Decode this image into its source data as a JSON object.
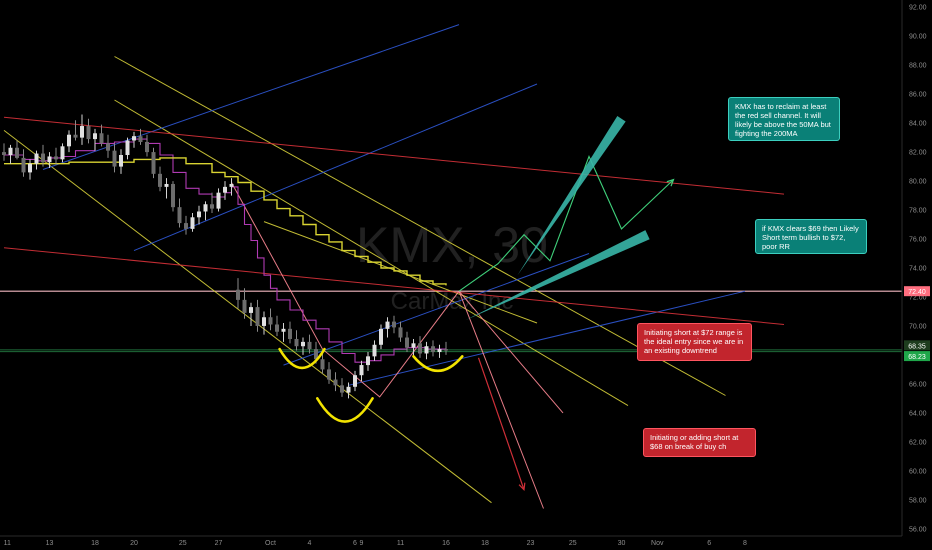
{
  "chart_data": {
    "type": "line",
    "symbol": "KMX, 30",
    "company": "CarMax Inc",
    "ylim": [
      55.5,
      92.5
    ],
    "y_ticks": [
      56,
      58,
      60,
      62,
      64,
      66,
      68,
      70,
      72,
      74,
      76,
      78,
      80,
      82,
      84,
      86,
      88,
      90,
      92
    ],
    "x_ticks": [
      {
        "label": "11",
        "bar": 0.5
      },
      {
        "label": "13",
        "bar": 7
      },
      {
        "label": "18",
        "bar": 14
      },
      {
        "label": "20",
        "bar": 20
      },
      {
        "label": "25",
        "bar": 27.5
      },
      {
        "label": "27",
        "bar": 33
      },
      {
        "label": "Oct",
        "bar": 41
      },
      {
        "label": "4",
        "bar": 47
      },
      {
        "label": "6",
        "bar": 54
      },
      {
        "label": "9",
        "bar": 55
      },
      {
        "label": "11",
        "bar": 61
      },
      {
        "label": "16",
        "bar": 68
      },
      {
        "label": "18",
        "bar": 74
      },
      {
        "label": "23",
        "bar": 81
      },
      {
        "label": "25",
        "bar": 87.5
      },
      {
        "label": "30",
        "bar": 95
      },
      {
        "label": "Nov",
        "bar": 100.5
      },
      {
        "label": "6",
        "bar": 108.5
      },
      {
        "label": "8",
        "bar": 114
      }
    ],
    "x_domain_bars": [
      0,
      120
    ],
    "price_bars": [
      {
        "x": 0,
        "o": 82,
        "h": 82.6,
        "l": 81.4,
        "c": 81.8
      },
      {
        "x": 1,
        "o": 81.8,
        "h": 82.5,
        "l": 81.2,
        "c": 82.3
      },
      {
        "x": 2,
        "o": 82.3,
        "h": 82.8,
        "l": 81.5,
        "c": 81.6
      },
      {
        "x": 3,
        "o": 81.6,
        "h": 82.2,
        "l": 80.3,
        "c": 80.6
      },
      {
        "x": 4,
        "o": 80.6,
        "h": 81.5,
        "l": 80.1,
        "c": 81.2
      },
      {
        "x": 5,
        "o": 81.2,
        "h": 82.1,
        "l": 80.8,
        "c": 81.9
      },
      {
        "x": 6,
        "o": 81.9,
        "h": 82.5,
        "l": 81.0,
        "c": 81.3
      },
      {
        "x": 7,
        "o": 81.3,
        "h": 82.0,
        "l": 80.9,
        "c": 81.7
      },
      {
        "x": 8,
        "o": 81.7,
        "h": 82.3,
        "l": 81.2,
        "c": 81.5
      },
      {
        "x": 9,
        "o": 81.5,
        "h": 82.6,
        "l": 81.3,
        "c": 82.4
      },
      {
        "x": 10,
        "o": 82.4,
        "h": 83.5,
        "l": 82.0,
        "c": 83.2
      },
      {
        "x": 11,
        "o": 83.2,
        "h": 84.2,
        "l": 82.8,
        "c": 83.0
      },
      {
        "x": 12,
        "o": 83.0,
        "h": 84.6,
        "l": 82.5,
        "c": 83.8
      },
      {
        "x": 13,
        "o": 83.8,
        "h": 84.3,
        "l": 82.6,
        "c": 82.9
      },
      {
        "x": 14,
        "o": 82.9,
        "h": 83.6,
        "l": 82.1,
        "c": 83.3
      },
      {
        "x": 15,
        "o": 83.3,
        "h": 83.9,
        "l": 82.4,
        "c": 82.6
      },
      {
        "x": 16,
        "o": 82.6,
        "h": 83.2,
        "l": 81.6,
        "c": 82.1
      },
      {
        "x": 17,
        "o": 82.1,
        "h": 82.6,
        "l": 80.6,
        "c": 81.0
      },
      {
        "x": 18,
        "o": 81.0,
        "h": 82.2,
        "l": 80.5,
        "c": 81.8
      },
      {
        "x": 19,
        "o": 81.8,
        "h": 83.0,
        "l": 81.5,
        "c": 82.8
      },
      {
        "x": 20,
        "o": 82.8,
        "h": 83.4,
        "l": 82.3,
        "c": 83.1
      },
      {
        "x": 21,
        "o": 83.1,
        "h": 83.6,
        "l": 82.5,
        "c": 82.7
      },
      {
        "x": 22,
        "o": 82.7,
        "h": 83.2,
        "l": 81.7,
        "c": 82.0
      },
      {
        "x": 23,
        "o": 82.0,
        "h": 82.3,
        "l": 80.2,
        "c": 80.5
      },
      {
        "x": 24,
        "o": 80.5,
        "h": 81.0,
        "l": 79.3,
        "c": 79.6
      },
      {
        "x": 25,
        "o": 79.6,
        "h": 80.2,
        "l": 78.8,
        "c": 79.8
      },
      {
        "x": 26,
        "o": 79.8,
        "h": 80.0,
        "l": 77.9,
        "c": 78.2
      },
      {
        "x": 27,
        "o": 78.2,
        "h": 78.8,
        "l": 76.8,
        "c": 77.1
      },
      {
        "x": 28,
        "o": 77.1,
        "h": 77.6,
        "l": 76.3,
        "c": 76.7
      },
      {
        "x": 29,
        "o": 76.7,
        "h": 77.8,
        "l": 76.5,
        "c": 77.5
      },
      {
        "x": 30,
        "o": 77.5,
        "h": 78.3,
        "l": 77.0,
        "c": 77.9
      },
      {
        "x": 31,
        "o": 77.9,
        "h": 78.6,
        "l": 77.3,
        "c": 78.4
      },
      {
        "x": 32,
        "o": 78.4,
        "h": 79.2,
        "l": 77.8,
        "c": 78.1
      },
      {
        "x": 33,
        "o": 78.1,
        "h": 79.5,
        "l": 77.9,
        "c": 79.2
      },
      {
        "x": 34,
        "o": 79.2,
        "h": 80.0,
        "l": 78.7,
        "c": 79.6
      },
      {
        "x": 35,
        "o": 79.6,
        "h": 80.2,
        "l": 79.0,
        "c": 79.8
      },
      {
        "x": 36,
        "o": 72.5,
        "h": 73.3,
        "l": 71.2,
        "c": 71.8
      },
      {
        "x": 37,
        "o": 71.8,
        "h": 72.6,
        "l": 70.5,
        "c": 70.9
      },
      {
        "x": 38,
        "o": 70.9,
        "h": 71.6,
        "l": 70.0,
        "c": 71.3
      },
      {
        "x": 39,
        "o": 71.3,
        "h": 71.8,
        "l": 69.6,
        "c": 70.0
      },
      {
        "x": 40,
        "o": 70.0,
        "h": 71.0,
        "l": 69.4,
        "c": 70.6
      },
      {
        "x": 41,
        "o": 70.6,
        "h": 71.2,
        "l": 69.7,
        "c": 70.1
      },
      {
        "x": 42,
        "o": 70.1,
        "h": 70.7,
        "l": 69.3,
        "c": 69.6
      },
      {
        "x": 43,
        "o": 69.6,
        "h": 70.2,
        "l": 68.9,
        "c": 69.8
      },
      {
        "x": 44,
        "o": 69.8,
        "h": 70.3,
        "l": 68.8,
        "c": 69.1
      },
      {
        "x": 45,
        "o": 69.1,
        "h": 69.7,
        "l": 68.3,
        "c": 68.6
      },
      {
        "x": 46,
        "o": 68.6,
        "h": 69.2,
        "l": 68.0,
        "c": 68.9
      },
      {
        "x": 47,
        "o": 68.9,
        "h": 69.4,
        "l": 68.1,
        "c": 68.4
      },
      {
        "x": 48,
        "o": 68.4,
        "h": 68.9,
        "l": 67.4,
        "c": 67.7
      },
      {
        "x": 49,
        "o": 67.7,
        "h": 68.2,
        "l": 66.7,
        "c": 67.0
      },
      {
        "x": 50,
        "o": 67.0,
        "h": 67.5,
        "l": 66.0,
        "c": 66.3
      },
      {
        "x": 51,
        "o": 66.3,
        "h": 66.8,
        "l": 65.5,
        "c": 65.9
      },
      {
        "x": 52,
        "o": 65.9,
        "h": 66.4,
        "l": 65.1,
        "c": 65.4
      },
      {
        "x": 53,
        "o": 65.4,
        "h": 66.1,
        "l": 65.0,
        "c": 65.8
      },
      {
        "x": 54,
        "o": 65.8,
        "h": 66.9,
        "l": 65.5,
        "c": 66.6
      },
      {
        "x": 55,
        "o": 66.6,
        "h": 67.6,
        "l": 66.2,
        "c": 67.3
      },
      {
        "x": 56,
        "o": 67.3,
        "h": 68.2,
        "l": 66.9,
        "c": 67.9
      },
      {
        "x": 57,
        "o": 67.9,
        "h": 69.0,
        "l": 67.6,
        "c": 68.7
      },
      {
        "x": 58,
        "o": 68.7,
        "h": 70.1,
        "l": 68.4,
        "c": 69.8
      },
      {
        "x": 59,
        "o": 69.8,
        "h": 70.6,
        "l": 69.2,
        "c": 70.3
      },
      {
        "x": 60,
        "o": 70.3,
        "h": 70.7,
        "l": 69.5,
        "c": 69.9
      },
      {
        "x": 61,
        "o": 69.9,
        "h": 70.3,
        "l": 68.9,
        "c": 69.2
      },
      {
        "x": 62,
        "o": 69.2,
        "h": 69.6,
        "l": 68.2,
        "c": 68.5
      },
      {
        "x": 63,
        "o": 68.5,
        "h": 69.1,
        "l": 67.9,
        "c": 68.8
      },
      {
        "x": 64,
        "o": 68.8,
        "h": 69.3,
        "l": 67.8,
        "c": 68.1
      },
      {
        "x": 65,
        "o": 68.1,
        "h": 68.9,
        "l": 67.7,
        "c": 68.6
      },
      {
        "x": 66,
        "o": 68.6,
        "h": 69.0,
        "l": 67.9,
        "c": 68.2
      },
      {
        "x": 67,
        "o": 68.2,
        "h": 68.7,
        "l": 67.8,
        "c": 68.4
      },
      {
        "x": 68,
        "o": 68.4,
        "h": 68.9,
        "l": 68.0,
        "c": 68.3
      }
    ],
    "ma_fast": [
      [
        0,
        81.8
      ],
      [
        3,
        81.5
      ],
      [
        5,
        81.4
      ],
      [
        7,
        81.6
      ],
      [
        9,
        81.7
      ],
      [
        11,
        82.1
      ],
      [
        14,
        82.6
      ],
      [
        17,
        82.7
      ],
      [
        20,
        82.9
      ],
      [
        22,
        82.6
      ],
      [
        24,
        81.8
      ],
      [
        26,
        80.6
      ],
      [
        28,
        79.5
      ],
      [
        30,
        79.1
      ],
      [
        32,
        78.9
      ],
      [
        34,
        79.2
      ],
      [
        35,
        79.6
      ],
      [
        36,
        78.4
      ],
      [
        37,
        77.0
      ],
      [
        38,
        75.9
      ],
      [
        39,
        74.7
      ],
      [
        40,
        73.5
      ],
      [
        41,
        72.6
      ],
      [
        42,
        71.8
      ],
      [
        44,
        71.1
      ],
      [
        46,
        70.4
      ],
      [
        48,
        69.8
      ],
      [
        50,
        68.9
      ],
      [
        52,
        68.1
      ],
      [
        54,
        67.5
      ],
      [
        56,
        67.6
      ],
      [
        58,
        68.0
      ],
      [
        60,
        68.4
      ],
      [
        62,
        68.5
      ],
      [
        65,
        68.4
      ],
      [
        68,
        68.3
      ]
    ],
    "ma_slow": [
      [
        0,
        81.2
      ],
      [
        10,
        81.3
      ],
      [
        20,
        81.5
      ],
      [
        24,
        81.6
      ],
      [
        28,
        81.2
      ],
      [
        32,
        80.6
      ],
      [
        34,
        80.3
      ],
      [
        36,
        79.9
      ],
      [
        38,
        79.3
      ],
      [
        40,
        78.7
      ],
      [
        42,
        78.1
      ],
      [
        44,
        77.6
      ],
      [
        46,
        77.0
      ],
      [
        48,
        76.3
      ],
      [
        50,
        75.8
      ],
      [
        52,
        75.2
      ],
      [
        54,
        74.8
      ],
      [
        56,
        74.4
      ],
      [
        58,
        74.0
      ],
      [
        60,
        73.8
      ],
      [
        62,
        73.5
      ],
      [
        64,
        73.1
      ],
      [
        66,
        72.9
      ],
      [
        68,
        72.8
      ]
    ],
    "price_levels": [
      {
        "value": 72.4,
        "label": "72.40",
        "color": "#f2b8c0",
        "label_bg": "#ff6e7f"
      },
      {
        "value": 68.35,
        "label": "68.35",
        "color": "#1f6b3a",
        "label_bg": "#1e3d1e"
      },
      {
        "value": 68.23,
        "label": "68.23",
        "color": "#1f6b3a",
        "label_bg": "#1fa64a"
      }
    ],
    "trendlines": [
      {
        "color": "#d6cf3a",
        "points": [
          [
            0,
            83.5
          ],
          [
            75,
            57.8
          ]
        ]
      },
      {
        "color": "#d6cf3a",
        "points": [
          [
            17,
            88.6
          ],
          [
            111,
            65.2
          ]
        ]
      },
      {
        "color": "#d6cf3a",
        "points": [
          [
            17,
            85.6
          ],
          [
            96,
            64.5
          ]
        ]
      },
      {
        "color": "#d6cf3a",
        "points": [
          [
            40,
            77.2
          ],
          [
            82,
            70.2
          ]
        ]
      },
      {
        "color": "#2f58d6",
        "points": [
          [
            6,
            80.8
          ],
          [
            70,
            90.8
          ]
        ]
      },
      {
        "color": "#2f58d6",
        "points": [
          [
            20,
            75.2
          ],
          [
            82,
            86.7
          ]
        ]
      },
      {
        "color": "#2f58d6",
        "points": [
          [
            43,
            67.3
          ],
          [
            90,
            75.0
          ]
        ]
      },
      {
        "color": "#2f58d6",
        "points": [
          [
            53,
            65.9
          ],
          [
            114,
            72.4
          ]
        ]
      },
      {
        "color": "#d8323a",
        "points": [
          [
            0,
            84.4
          ],
          [
            120,
            79.1
          ]
        ]
      },
      {
        "color": "#d8323a",
        "points": [
          [
            0,
            75.4
          ],
          [
            120,
            70.1
          ]
        ]
      },
      {
        "color": "#ff8a96",
        "points": [
          [
            35,
            79.9
          ],
          [
            49,
            68.4
          ],
          [
            57.8,
            65.1
          ],
          [
            70,
            72.4
          ],
          [
            83,
            57.4
          ]
        ]
      },
      {
        "color": "#ff8a96",
        "points": [
          [
            70,
            72.4
          ],
          [
            86,
            64.0
          ]
        ]
      }
    ],
    "projection_green": [
      [
        70,
        72.4
      ],
      [
        76,
        74.3
      ],
      [
        80,
        76.3
      ],
      [
        84,
        74.5
      ],
      [
        90,
        81.7
      ],
      [
        95,
        76.7
      ],
      [
        103,
        80.1
      ]
    ],
    "arrows": [
      {
        "color": "#cf2f38",
        "points": [
          [
            73,
            67.8
          ],
          [
            80,
            58.7
          ]
        ]
      },
      {
        "color": "#38b6a8",
        "points": [
          [
            79,
            73.5
          ],
          [
            95,
            84.3
          ]
        ]
      },
      {
        "color": "#38b6a8",
        "points": [
          [
            71,
            70.4
          ],
          [
            99,
            76.3
          ]
        ]
      }
    ],
    "highlight_arcs": [
      {
        "x0": 42.4,
        "x1": 49.3,
        "y": 68.4,
        "depth": 1.3
      },
      {
        "x0": 48.2,
        "x1": 56.7,
        "y": 65.0,
        "depth": 1.6
      },
      {
        "x0": 63.0,
        "x1": 70.5,
        "y": 67.9,
        "depth": 1.0
      }
    ],
    "annotations": [
      {
        "id": "reclaim",
        "text": "KMX has to reclaim at least the red sell channel. It will likely be above the 50MA but fighting the 200MA",
        "style": "teal"
      },
      {
        "id": "clears",
        "text": "if KMX clears $69 then Likely Short term bullish to $72, poor RR",
        "style": "teal"
      },
      {
        "id": "short72",
        "text": "Initiating short at $72 range is the ideal entry since we are in an existing downtrend",
        "style": "red"
      },
      {
        "id": "short68",
        "text": "Initiating or adding short at $68 on break of buy ch",
        "style": "red"
      }
    ]
  }
}
